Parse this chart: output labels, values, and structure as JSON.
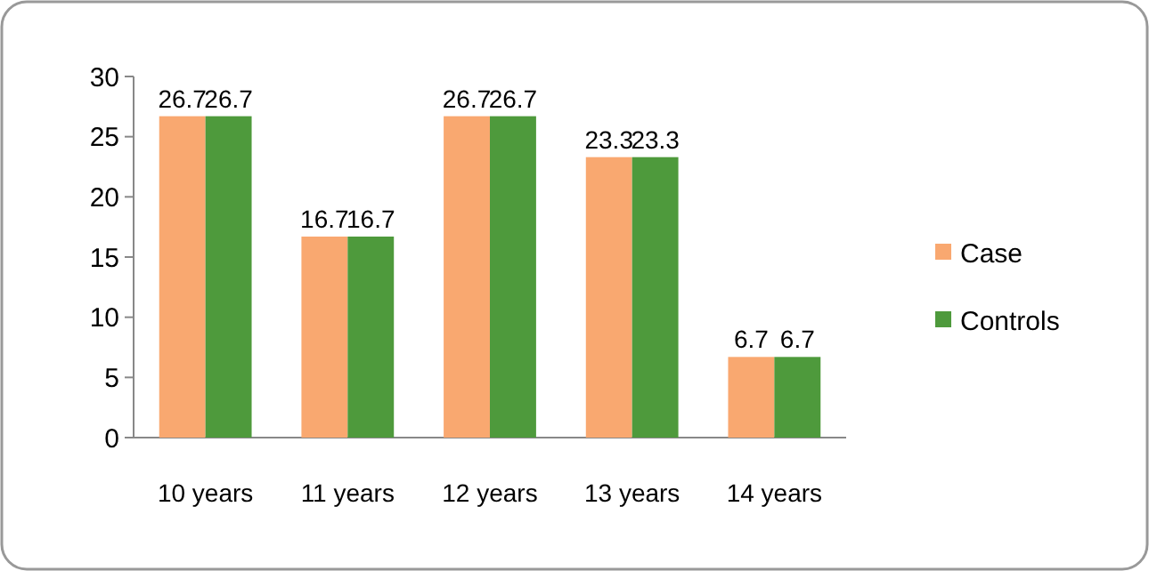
{
  "chart_data": {
    "type": "bar",
    "categories": [
      "10 years",
      "11 years",
      "12 years",
      "13 years",
      "14 years"
    ],
    "series": [
      {
        "name": "Case",
        "color": "#f9a870",
        "values": [
          26.7,
          16.7,
          26.7,
          23.3,
          6.7
        ]
      },
      {
        "name": "Controls",
        "color": "#4e9a3c",
        "values": [
          26.7,
          16.7,
          26.7,
          23.3,
          6.7
        ]
      }
    ],
    "ylim": [
      0,
      30
    ],
    "yticks": [
      0,
      5,
      10,
      15,
      20,
      25,
      30
    ],
    "data_labels": true,
    "legend": "right",
    "grid": false
  }
}
